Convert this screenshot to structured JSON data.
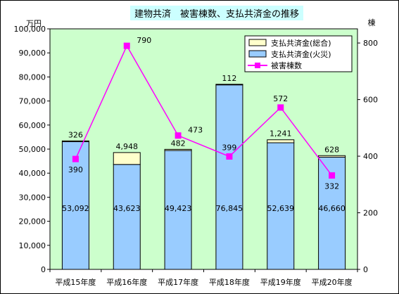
{
  "chart_data": {
    "type": "bar",
    "title": "建物共済　被害棟数、支払共済金の推移",
    "ylabel_left": "万円",
    "ylabel_right": "棟",
    "categories": [
      "平成15年度",
      "平成16年度",
      "平成17年度",
      "平成18年度",
      "平成19年度",
      "平成20年度"
    ],
    "ylim_left": [
      0,
      100000
    ],
    "yticks_left": [
      "0",
      "10,000",
      "20,000",
      "30,000",
      "40,000",
      "50,000",
      "60,000",
      "70,000",
      "80,000",
      "90,000",
      "100,000"
    ],
    "ylim_right": [
      0,
      850
    ],
    "yticks_right": [
      "0",
      "200",
      "400",
      "600",
      "800"
    ],
    "series": [
      {
        "name": "支払共済金(火災)",
        "kind": "bar",
        "stack": "base",
        "color": "#99ccff",
        "values": [
          53092,
          43623,
          49423,
          76845,
          52639,
          46660
        ],
        "labels": [
          "53,092",
          "43,623",
          "49,423",
          "76,845",
          "52,639",
          "46,660"
        ]
      },
      {
        "name": "支払共済金(総合)",
        "kind": "bar",
        "stack": "top",
        "color": "#ffffcc",
        "values": [
          326,
          4948,
          482,
          112,
          1241,
          628
        ],
        "labels": [
          "326",
          "4,948",
          "482",
          "112",
          "1,241",
          "628"
        ]
      },
      {
        "name": "被害棟数",
        "kind": "line",
        "axis": "right",
        "color": "#ff00ff",
        "values": [
          390,
          790,
          473,
          399,
          572,
          332
        ],
        "labels": [
          "390",
          "790",
          "473",
          "399",
          "572",
          "332"
        ]
      }
    ],
    "legend_order": [
      "支払共済金(総合)",
      "支払共済金(火災)",
      "被害棟数"
    ],
    "legend_position": "top-right",
    "plot_background": "#ccffcc",
    "grid": false
  }
}
